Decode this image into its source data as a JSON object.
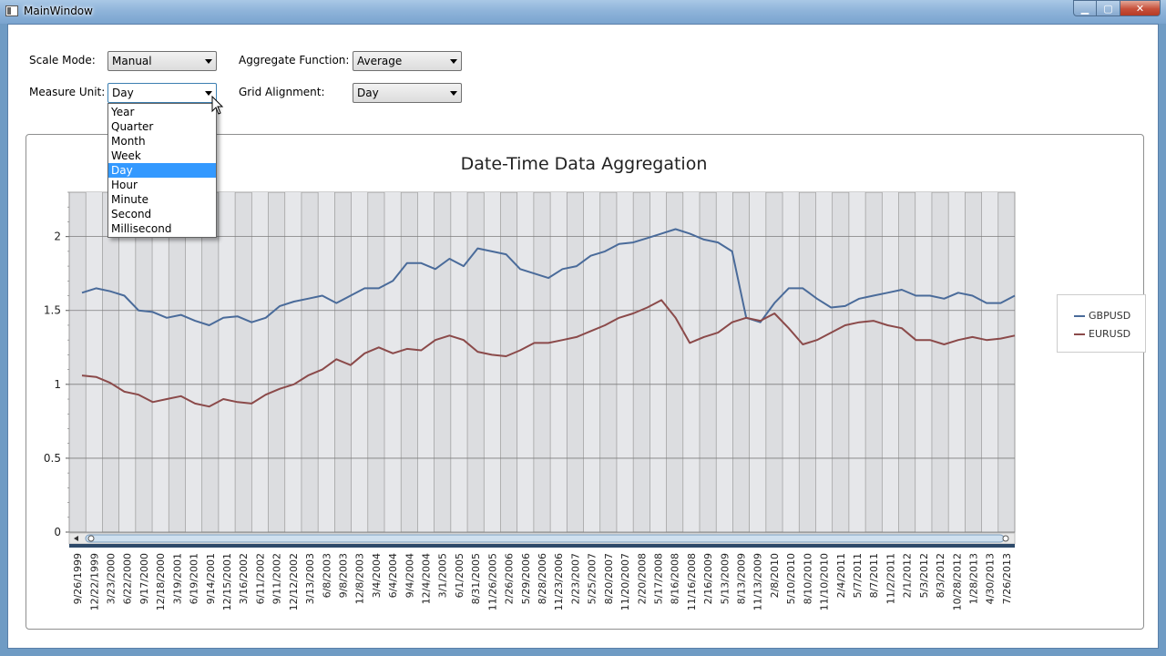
{
  "window": {
    "title": "MainWindow",
    "minimize_glyph": "▁",
    "maximize_glyph": "▢",
    "close_glyph": "✕"
  },
  "controls": {
    "scale_mode": {
      "label": "Scale Mode:",
      "value": "Manual"
    },
    "aggregate_function": {
      "label": "Aggregate Function:",
      "value": "Average"
    },
    "measure_unit": {
      "label": "Measure Unit:",
      "value": "Day",
      "options": [
        "Year",
        "Quarter",
        "Month",
        "Week",
        "Day",
        "Hour",
        "Minute",
        "Second",
        "Millisecond"
      ],
      "selected_index": 4
    },
    "grid_alignment": {
      "label": "Grid Alignment:",
      "value": "Day"
    }
  },
  "chart_data": {
    "type": "line",
    "title": "Date-Time Data Aggregation",
    "xlabel": "",
    "ylabel": "",
    "ylim": [
      0,
      2.3
    ],
    "yticks": [
      0,
      0.5,
      1,
      1.5,
      2
    ],
    "ytick_labels": [
      "0",
      "0.5",
      "1",
      "1.5",
      "2"
    ],
    "xtick_labels": [
      "9/26/1999",
      "12/22/1999",
      "3/23/2000",
      "6/22/2000",
      "9/17/2000",
      "12/18/2000",
      "3/19/2001",
      "6/19/2001",
      "9/14/2001",
      "12/15/2001",
      "3/16/2002",
      "6/11/2002",
      "9/11/2002",
      "12/12/2002",
      "3/13/2003",
      "6/8/2003",
      "9/8/2003",
      "12/8/2003",
      "3/4/2004",
      "6/4/2004",
      "9/4/2004",
      "12/4/2004",
      "3/1/2005",
      "6/1/2005",
      "8/31/2005",
      "11/26/2005",
      "2/26/2006",
      "5/29/2006",
      "8/28/2006",
      "11/23/2006",
      "2/23/2007",
      "5/25/2007",
      "8/20/2007",
      "11/20/2007",
      "2/20/2008",
      "5/17/2008",
      "8/16/2008",
      "11/16/2008",
      "2/16/2009",
      "5/13/2009",
      "8/13/2009",
      "11/13/2009",
      "2/8/2010",
      "5/10/2010",
      "8/10/2010",
      "11/10/2010",
      "2/4/2011",
      "5/7/2011",
      "8/7/2011",
      "11/2/2011",
      "2/1/2012",
      "5/3/2012",
      "8/3/2012",
      "10/28/2012",
      "1/28/2013",
      "4/30/2013",
      "7/26/2013"
    ],
    "grid": true,
    "legend_position": "right",
    "series": [
      {
        "name": "GBPUSD",
        "color": "#4a6b9a",
        "values": [
          1.62,
          1.65,
          1.63,
          1.6,
          1.5,
          1.49,
          1.45,
          1.47,
          1.43,
          1.4,
          1.45,
          1.46,
          1.42,
          1.45,
          1.53,
          1.56,
          1.58,
          1.6,
          1.55,
          1.6,
          1.65,
          1.65,
          1.7,
          1.82,
          1.82,
          1.78,
          1.85,
          1.8,
          1.92,
          1.9,
          1.88,
          1.78,
          1.75,
          1.72,
          1.78,
          1.8,
          1.87,
          1.9,
          1.95,
          1.96,
          1.99,
          2.02,
          2.05,
          2.02,
          1.98,
          1.96,
          1.9,
          1.45,
          1.42,
          1.55,
          1.65,
          1.65,
          1.58,
          1.52,
          1.53,
          1.58,
          1.6,
          1.62,
          1.64,
          1.6,
          1.6,
          1.58,
          1.62,
          1.6,
          1.55,
          1.55,
          1.6
        ]
      },
      {
        "name": "EURUSD",
        "color": "#8b4a4a",
        "values": [
          1.06,
          1.05,
          1.01,
          0.95,
          0.93,
          0.88,
          0.9,
          0.92,
          0.87,
          0.85,
          0.9,
          0.88,
          0.87,
          0.93,
          0.97,
          1.0,
          1.06,
          1.1,
          1.17,
          1.13,
          1.21,
          1.25,
          1.21,
          1.24,
          1.23,
          1.3,
          1.33,
          1.3,
          1.22,
          1.2,
          1.19,
          1.23,
          1.28,
          1.28,
          1.3,
          1.32,
          1.36,
          1.4,
          1.45,
          1.48,
          1.52,
          1.57,
          1.45,
          1.28,
          1.32,
          1.35,
          1.42,
          1.45,
          1.43,
          1.48,
          1.38,
          1.27,
          1.3,
          1.35,
          1.4,
          1.42,
          1.43,
          1.4,
          1.38,
          1.3,
          1.3,
          1.27,
          1.3,
          1.32,
          1.3,
          1.31,
          1.33
        ]
      }
    ]
  }
}
